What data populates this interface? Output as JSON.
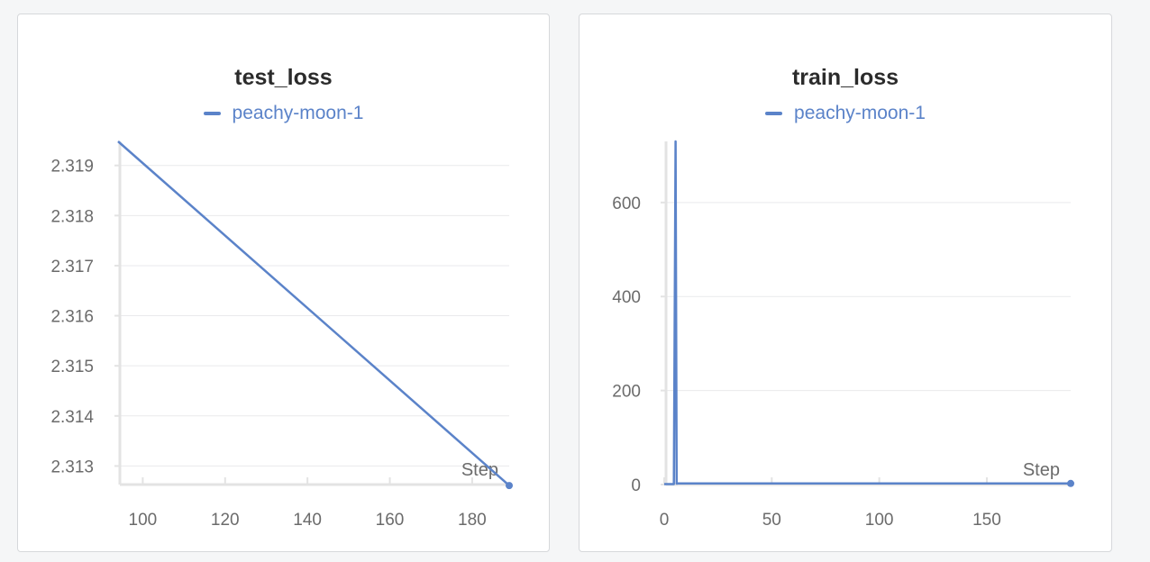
{
  "colors": {
    "series": "#5b83c9",
    "grid": "#e9eaec",
    "axis": "#e3e3e3",
    "text": "#6b6b6b"
  },
  "chart_data": [
    {
      "type": "line",
      "title": "test_loss",
      "xlabel": "Step",
      "ylabel": "",
      "xlim": [
        94,
        189
      ],
      "ylim": [
        2.31263,
        2.31948
      ],
      "x_ticks": [
        100,
        120,
        140,
        160,
        180
      ],
      "y_ticks": [
        2.313,
        2.314,
        2.315,
        2.316,
        2.317,
        2.318,
        2.319
      ],
      "grid": true,
      "legend_position": "top",
      "series": [
        {
          "name": "peachy-moon-1",
          "x": [
            94,
            189
          ],
          "y": [
            2.31948,
            2.31261
          ]
        }
      ]
    },
    {
      "type": "line",
      "title": "train_loss",
      "xlabel": "Step",
      "ylabel": "",
      "xlim": [
        0,
        189
      ],
      "ylim": [
        0,
        730
      ],
      "x_ticks": [
        0,
        50,
        100,
        150
      ],
      "y_ticks": [
        0,
        200,
        400,
        600
      ],
      "y_tick_labels": [
        "0",
        "200",
        "400",
        "600"
      ],
      "grid": true,
      "legend_position": "top",
      "series": [
        {
          "name": "peachy-moon-1",
          "x": [
            0,
            4,
            4.5,
            5.3,
            5.8,
            6.3,
            60,
            120,
            189
          ],
          "y": [
            1,
            1,
            1,
            730,
            2,
            2.3,
            2.3,
            2.3,
            2.3
          ]
        }
      ]
    }
  ]
}
